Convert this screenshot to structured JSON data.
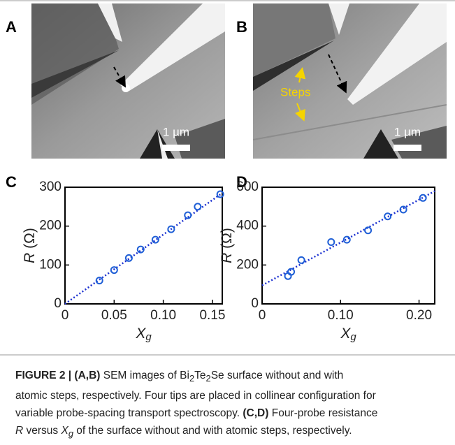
{
  "panel_labels": [
    "A",
    "B",
    "C",
    "D"
  ],
  "images": [
    {
      "scale_bar": "1 µm"
    },
    {
      "scale_bar": "1 µm",
      "annotation": "Steps"
    }
  ],
  "chart_data": [
    {
      "type": "scatter",
      "color": "#1f5fd6",
      "x": [
        0.035,
        0.05,
        0.065,
        0.077,
        0.092,
        0.108,
        0.125,
        0.135,
        0.158
      ],
      "values": [
        60,
        87,
        118,
        140,
        165,
        192,
        228,
        250,
        282
      ],
      "fit": {
        "x": [
          0,
          0.16
        ],
        "values": [
          0,
          285
        ]
      },
      "xlim": [
        0,
        0.16
      ],
      "ylim": [
        0,
        300
      ],
      "xticks": [
        0,
        0.05,
        {
          "value": 0.1,
          "label": "0.10"
        },
        0.15
      ],
      "yticks": [
        0,
        100,
        200,
        300
      ],
      "x_label": "X",
      "x_label_sub": "g",
      "y_label": "R",
      "y_label_unit": "(Ω)"
    },
    {
      "type": "scatter",
      "color": "#1f5fd6",
      "x": [
        0.033,
        0.037,
        0.05,
        0.088,
        0.108,
        0.135,
        0.16,
        0.18,
        0.205
      ],
      "values": [
        143,
        165,
        225,
        318,
        330,
        378,
        450,
        485,
        545
      ],
      "fit": {
        "x": [
          0,
          0.22
        ],
        "values": [
          95,
          580
        ]
      },
      "xlim": [
        0,
        0.22
      ],
      "ylim": [
        0,
        600
      ],
      "xticks": [
        0,
        {
          "value": 0.1,
          "label": "0.10"
        },
        {
          "value": 0.2,
          "label": "0.20"
        }
      ],
      "yticks": [
        0,
        200,
        400,
        600
      ],
      "x_label": "X",
      "x_label_sub": "g",
      "y_label": "R",
      "y_label_unit": "(Ω)"
    }
  ],
  "caption": [
    "FIGURE 2 | (A,B)",
    " SEM images of Bi",
    "2",
    "Te",
    "2",
    "Se surface without and with",
    "atomic steps, respectively. Four tips are placed in collinear configuration for",
    "variable probe-spacing transport spectroscopy. ",
    "(C,D)",
    " Four-probe resistance",
    "R",
    " versus ",
    "X",
    "g",
    " of the surface without and with atomic steps, respectively."
  ]
}
